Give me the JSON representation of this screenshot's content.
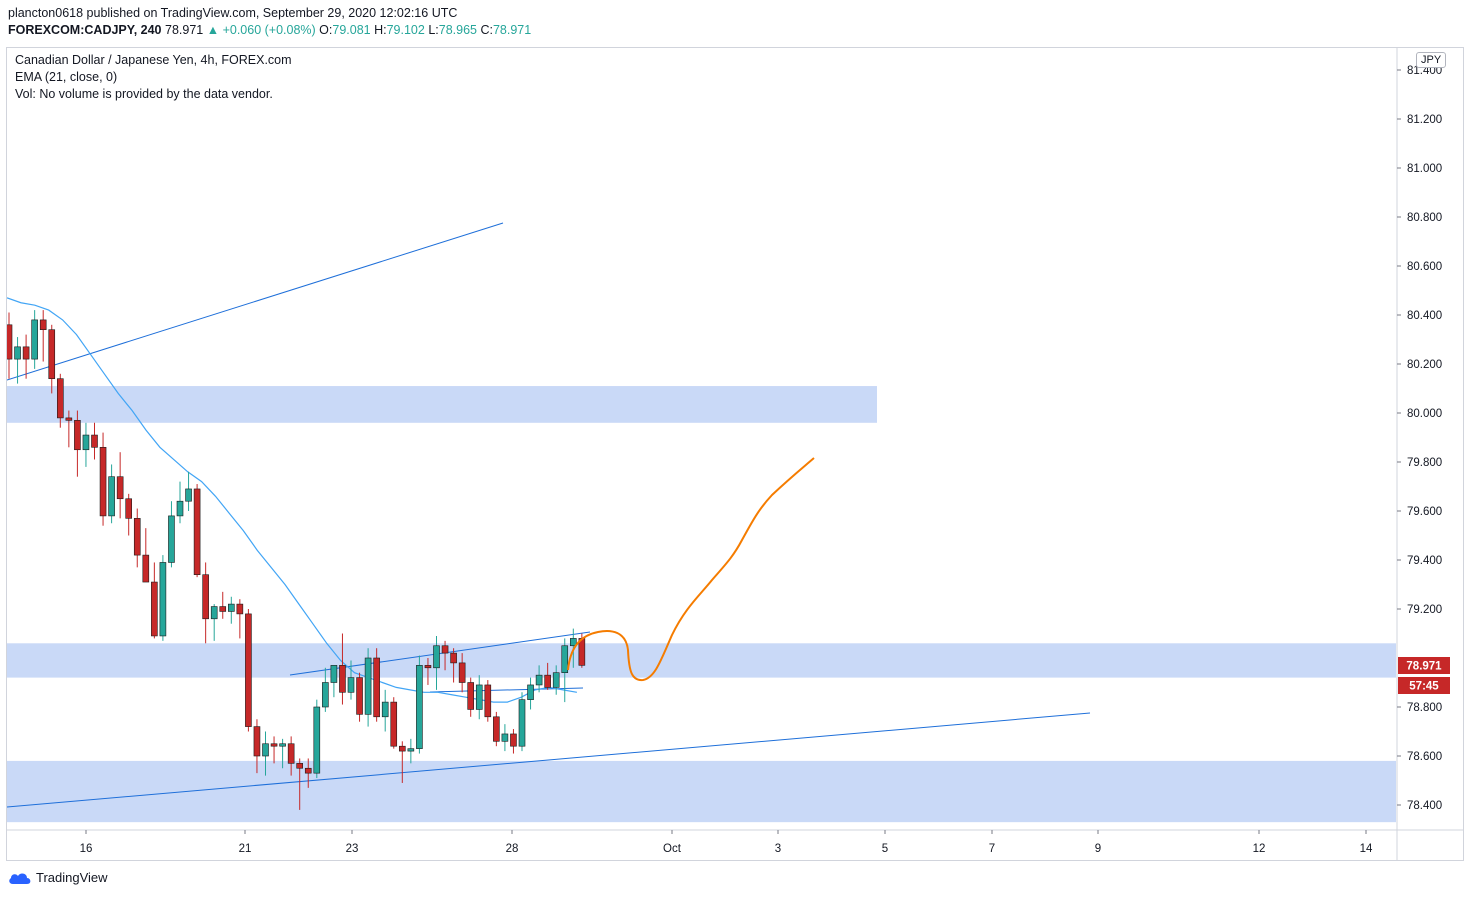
{
  "header": {
    "published": "plancton0618 published on TradingView.com, September 29, 2020 12:02:16 UTC",
    "symbol": "FOREXCOM:CADJPY, 240",
    "last": "78.971",
    "change": "▲ +0.060 (+0.08%)",
    "o_label": "O:",
    "o_value": "79.081",
    "h_label": "H:",
    "h_value": "79.102",
    "l_label": "L:",
    "l_value": "78.965",
    "c_label": "C:",
    "c_value": "78.971"
  },
  "legend": {
    "title": "Canadian Dollar / Japanese Yen, 4h, FOREX.com",
    "ema": "EMA (21, close, 0)",
    "vol": "Vol: No volume is provided by the data vendor."
  },
  "currency_badge": "JPY",
  "price_badge": {
    "price": "78.971",
    "countdown": "57:45",
    "color": "#c62828"
  },
  "footer": {
    "brand": "TradingView",
    "logo_icon": "tradingview-cloud-icon"
  },
  "colors": {
    "bull": "#26a69a",
    "bear": "#c62828",
    "ema": "#42a5f5",
    "trendline": "#1e6fd9",
    "zone": "#bcd0f5",
    "projection": "#f57c00"
  },
  "chart_data": {
    "type": "candlestick",
    "y_axis": {
      "ticks": [
        "81.400",
        "81.200",
        "81.000",
        "80.800",
        "80.600",
        "80.400",
        "80.200",
        "80.000",
        "79.800",
        "79.600",
        "79.400",
        "79.200",
        "78.800",
        "78.600",
        "78.400"
      ],
      "min": 78.3,
      "max": 81.45
    },
    "x_axis": {
      "ticks": [
        "16",
        "21",
        "23",
        "28",
        "Oct",
        "3",
        "5",
        "7",
        "9",
        "12",
        "14"
      ]
    },
    "ohlc": [
      [
        80.36,
        80.41,
        80.14,
        80.22
      ],
      [
        80.22,
        80.31,
        80.12,
        80.27
      ],
      [
        80.27,
        80.32,
        80.14,
        80.22
      ],
      [
        80.22,
        80.42,
        80.18,
        80.38
      ],
      [
        80.38,
        80.42,
        80.21,
        80.34
      ],
      [
        80.34,
        80.36,
        80.08,
        80.14
      ],
      [
        80.14,
        80.16,
        79.94,
        79.98
      ],
      [
        79.98,
        80.01,
        79.86,
        79.97
      ],
      [
        79.97,
        80.01,
        79.74,
        79.85
      ],
      [
        79.85,
        79.96,
        79.78,
        79.91
      ],
      [
        79.91,
        79.96,
        79.81,
        79.86
      ],
      [
        79.86,
        79.92,
        79.54,
        79.58
      ],
      [
        79.58,
        79.79,
        79.55,
        79.74
      ],
      [
        79.74,
        79.84,
        79.57,
        79.65
      ],
      [
        79.65,
        79.67,
        79.5,
        79.57
      ],
      [
        79.57,
        79.61,
        79.37,
        79.42
      ],
      [
        79.42,
        79.53,
        79.32,
        79.31
      ],
      [
        79.31,
        79.39,
        79.08,
        79.09
      ],
      [
        79.09,
        79.42,
        79.07,
        79.39
      ],
      [
        79.39,
        79.64,
        79.37,
        79.58
      ],
      [
        79.58,
        79.72,
        79.55,
        79.64
      ],
      [
        79.64,
        79.76,
        79.6,
        79.69
      ],
      [
        79.69,
        79.71,
        79.33,
        79.34
      ],
      [
        79.34,
        79.39,
        79.06,
        79.16
      ],
      [
        79.16,
        79.22,
        79.07,
        79.21
      ],
      [
        79.21,
        79.27,
        79.16,
        79.19
      ],
      [
        79.19,
        79.25,
        79.14,
        79.22
      ],
      [
        79.22,
        79.24,
        79.08,
        79.18
      ],
      [
        79.18,
        79.2,
        78.7,
        78.72
      ],
      [
        78.72,
        78.75,
        78.53,
        78.6
      ],
      [
        78.6,
        78.7,
        78.52,
        78.65
      ],
      [
        78.65,
        78.68,
        78.57,
        78.64
      ],
      [
        78.64,
        78.67,
        78.55,
        78.65
      ],
      [
        78.65,
        78.68,
        78.52,
        78.57
      ],
      [
        78.57,
        78.59,
        78.38,
        78.55
      ],
      [
        78.55,
        78.59,
        78.47,
        78.53
      ],
      [
        78.53,
        78.83,
        78.51,
        78.8
      ],
      [
        78.8,
        78.96,
        78.78,
        78.9
      ],
      [
        78.9,
        78.96,
        78.84,
        78.97
      ],
      [
        78.97,
        79.1,
        78.81,
        78.86
      ],
      [
        78.86,
        78.99,
        78.83,
        78.92
      ],
      [
        78.92,
        78.94,
        78.74,
        78.77
      ],
      [
        78.77,
        79.04,
        78.72,
        79.0
      ],
      [
        79.0,
        79.04,
        78.74,
        78.76
      ],
      [
        78.76,
        78.87,
        78.7,
        78.82
      ],
      [
        78.82,
        78.84,
        78.63,
        78.64
      ],
      [
        78.64,
        78.66,
        78.49,
        78.62
      ],
      [
        78.62,
        78.67,
        78.57,
        78.63
      ],
      [
        78.63,
        79.01,
        78.61,
        78.97
      ],
      [
        78.97,
        79.0,
        78.89,
        78.96
      ],
      [
        78.96,
        79.09,
        78.87,
        79.05
      ],
      [
        79.05,
        79.07,
        78.95,
        79.02
      ],
      [
        79.02,
        79.04,
        78.9,
        78.98
      ],
      [
        78.98,
        79.02,
        78.86,
        78.9
      ],
      [
        78.9,
        78.92,
        78.76,
        78.79
      ],
      [
        78.79,
        78.93,
        78.75,
        78.89
      ],
      [
        78.89,
        78.91,
        78.74,
        78.76
      ],
      [
        78.76,
        78.78,
        78.64,
        78.66
      ],
      [
        78.66,
        78.73,
        78.62,
        78.69
      ],
      [
        78.69,
        78.71,
        78.61,
        78.64
      ],
      [
        78.64,
        78.86,
        78.62,
        78.83
      ],
      [
        78.83,
        78.92,
        78.79,
        78.89
      ],
      [
        78.89,
        78.97,
        78.86,
        78.93
      ],
      [
        78.93,
        78.98,
        78.87,
        78.88
      ],
      [
        78.88,
        78.97,
        78.85,
        78.94
      ],
      [
        78.94,
        79.08,
        78.82,
        79.05
      ],
      [
        79.05,
        79.12,
        78.96,
        79.08
      ],
      [
        79.08,
        79.1,
        78.96,
        78.97
      ]
    ],
    "ema21_level": [
      80.47,
      80.45,
      80.44,
      80.42,
      80.38,
      80.32,
      80.24,
      80.16,
      80.08,
      80.01,
      79.93,
      79.86,
      79.81,
      79.76,
      79.72,
      79.66,
      79.59,
      79.52,
      79.44,
      79.37,
      79.3,
      79.22,
      79.14,
      79.06,
      78.99,
      78.94,
      78.92,
      78.9,
      78.88,
      78.87,
      78.86,
      78.86,
      78.85,
      78.84,
      78.83,
      78.82,
      78.82,
      78.84,
      78.87,
      78.88,
      78.87,
      78.86
    ],
    "zones": [
      {
        "y_low": 79.96,
        "y_high": 80.11
      },
      {
        "y_low": 78.92,
        "y_high": 79.06
      },
      {
        "y_low": 78.33,
        "y_high": 78.58
      }
    ]
  }
}
